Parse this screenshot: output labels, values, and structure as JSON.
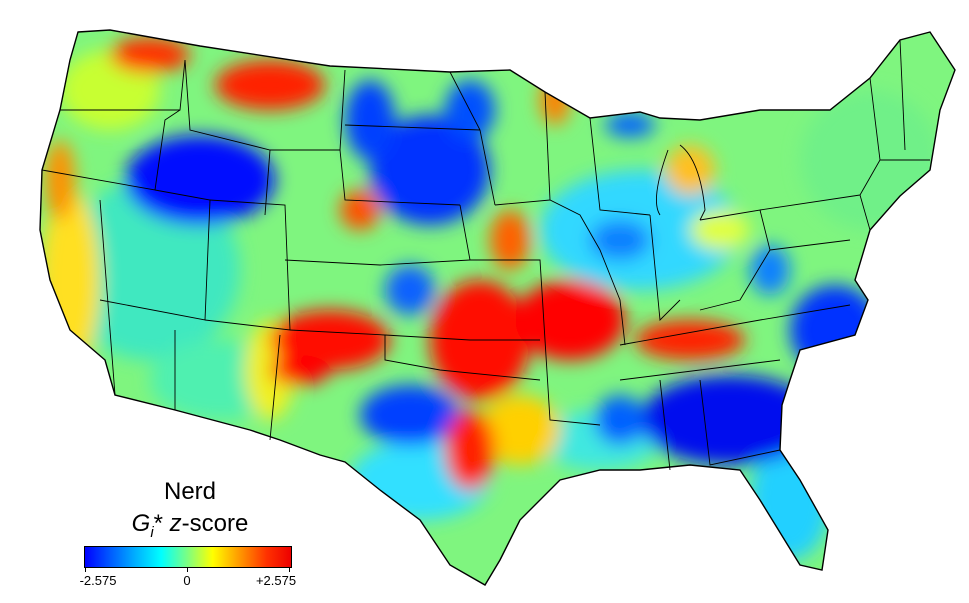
{
  "map": {
    "variable": "Nerd",
    "statistic_symbol": "G",
    "statistic_subscript": "i",
    "statistic_suffix": "*",
    "statistic_unit_var": "z",
    "statistic_unit_text": "-score",
    "colormap": "jet",
    "hotspots": [
      "Southern Plains / Texas",
      "Missouri-Arkansas-Tennessee",
      "Northern Rockies (Montana)",
      "Pacific Coast",
      "Minnesota"
    ],
    "coldspots": [
      "Southeast (Georgia, Carolinas)",
      "Northern Great Plains",
      "Great Basin (Idaho-Wyoming)",
      "West Texas"
    ]
  },
  "legend": {
    "min_label": "-2.575",
    "mid_label": "0",
    "max_label": "+2.575",
    "min_value": -2.575,
    "max_value": 2.575,
    "colors": [
      "#0000ff",
      "#00b3ff",
      "#00ffff",
      "#7fff7f",
      "#ffff00",
      "#ff9900",
      "#ee0000"
    ]
  }
}
